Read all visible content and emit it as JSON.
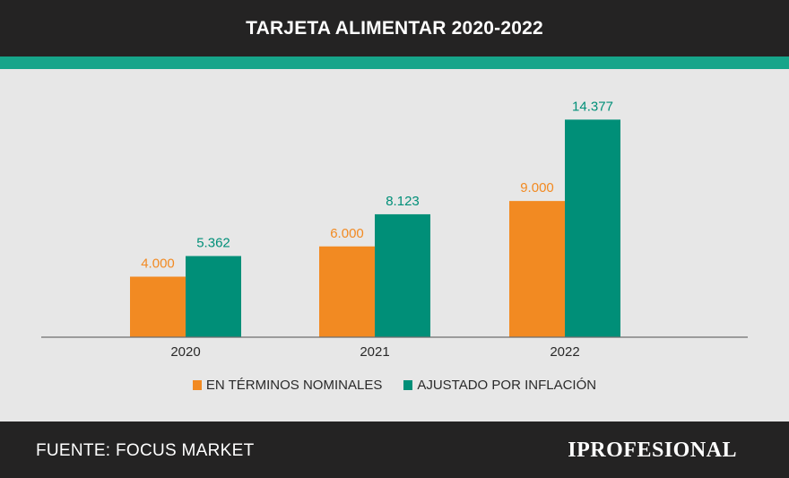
{
  "header": {
    "title": "TARJETA ALIMENTAR 2020-2022"
  },
  "colors": {
    "header_bg": "#242323",
    "accent": "#16a58a",
    "panel_bg": "#e7e7e7",
    "series_nominal": "#f28a22",
    "series_adjusted": "#008f78"
  },
  "chart_data": {
    "type": "bar",
    "title": "TARJETA ALIMENTAR 2020-2022",
    "categories": [
      "2020",
      "2021",
      "2022"
    ],
    "series": [
      {
        "name": "EN TÉRMINOS NOMINALES",
        "values": [
          4000,
          6000,
          9000
        ],
        "labels": [
          "4.000",
          "6.000",
          "9.000"
        ],
        "color": "#f28a22"
      },
      {
        "name": "AJUSTADO POR INFLACIÓN",
        "values": [
          5362,
          8123,
          14377
        ],
        "labels": [
          "5.362",
          "8.123",
          "14.377"
        ],
        "color": "#008f78"
      }
    ],
    "xlabel": "",
    "ylabel": "",
    "ylim": [
      0,
      16000
    ],
    "grid": false,
    "legend": "bottom-center"
  },
  "legend": {
    "nominal": "EN TÉRMINOS NOMINALES",
    "adjusted": "AJUSTADO POR INFLACIÓN"
  },
  "footer": {
    "source": "FUENTE: FOCUS MARKET",
    "brand": "IPROFESIONAL"
  }
}
